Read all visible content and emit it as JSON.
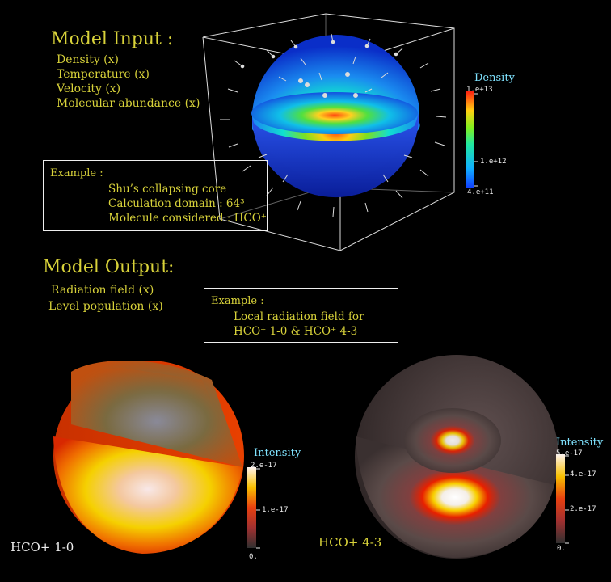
{
  "input": {
    "heading": "Model Input :",
    "items": [
      "Density (x)",
      "Temperature (x)",
      "Velocity (x)",
      "Molecular abundance (x)"
    ],
    "example": {
      "label": "Example :",
      "lines": [
        "Shu’s collapsing core",
        "Calculation domain : 64³",
        "Molecule considered : HCO⁺"
      ]
    }
  },
  "density_colorbar": {
    "title": "Density",
    "ticks": [
      "1.e+13",
      "1.e+12",
      "4.e+11"
    ]
  },
  "output": {
    "heading": "Model Output:",
    "items": [
      "Radiation field (x)",
      "Level population (x)"
    ],
    "example": {
      "label": "Example :",
      "lines": [
        "Local radiation field for",
        "HCO⁺ 1-0 & HCO⁺ 4-3"
      ]
    }
  },
  "panel_left": {
    "caption": "HCO+ 1-0",
    "colorbar_title": "Intensity",
    "ticks": [
      "2.e-17",
      "1.e-17",
      "0."
    ]
  },
  "panel_right": {
    "caption": "HCO+ 4-3",
    "colorbar_title": "Intensity",
    "ticks": [
      "5.e-17",
      "4.e-17",
      "2.e-17",
      "0."
    ]
  },
  "colors": {
    "text_yellow": "#d8d23a",
    "colorbar_title": "#7fe3ff"
  }
}
